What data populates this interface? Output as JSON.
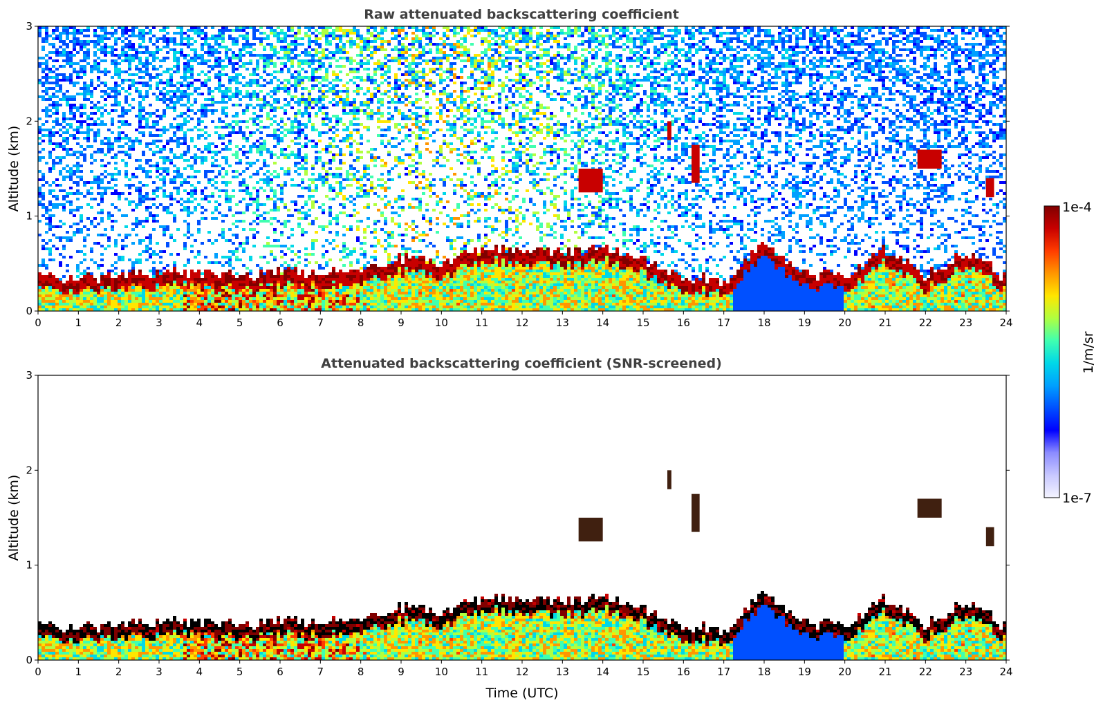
{
  "colors": {
    "colormap": [
      "#f4f4ff",
      "#c8c8ff",
      "#8c8cff",
      "#0000ff",
      "#0050ff",
      "#00a0ff",
      "#00d8e8",
      "#40ffb0",
      "#b0ff40",
      "#ffe600",
      "#ff9600",
      "#ff3c00",
      "#c80000",
      "#800000"
    ],
    "cloud_core": "#000000",
    "axis": "#000000",
    "title": "#404040"
  },
  "colorbar": {
    "label": "1/m/sr",
    "max_label": "1e-4",
    "min_label": "1e-7",
    "scale": "log"
  },
  "chart_data": [
    {
      "type": "heatmap",
      "title": "Raw attenuated backscattering coefficient",
      "xlabel": "",
      "ylabel": "Altitude (km)",
      "xlim": [
        0,
        24
      ],
      "ylim": [
        0,
        3
      ],
      "xticks": [
        "0",
        "1",
        "2",
        "3",
        "4",
        "5",
        "6",
        "7",
        "8",
        "9",
        "10",
        "11",
        "12",
        "13",
        "14",
        "15",
        "16",
        "17",
        "18",
        "19",
        "20",
        "21",
        "22",
        "23",
        "24"
      ],
      "yticks": [
        "0",
        "1",
        "2",
        "3"
      ],
      "screened": false,
      "boundary_layer_top_km": {
        "x": [
          0,
          1,
          2,
          3,
          4,
          5,
          6,
          7,
          8,
          9,
          10,
          11,
          12,
          13,
          14,
          15,
          16,
          17,
          18,
          19,
          20,
          21,
          22,
          23,
          24
        ],
        "y": [
          0.3,
          0.3,
          0.3,
          0.35,
          0.35,
          0.3,
          0.35,
          0.35,
          0.35,
          0.5,
          0.45,
          0.6,
          0.6,
          0.55,
          0.6,
          0.5,
          0.3,
          0.25,
          0.65,
          0.35,
          0.3,
          0.6,
          0.3,
          0.55,
          0.3
        ]
      },
      "elevated_cloud_layers": [
        {
          "x": [
            13.4,
            14.0
          ],
          "y_km": [
            1.25,
            1.5
          ]
        },
        {
          "x": [
            15.6,
            15.7
          ],
          "y_km": [
            1.8,
            2.0
          ]
        },
        {
          "x": [
            16.2,
            16.4
          ],
          "y_km": [
            1.35,
            1.75
          ]
        },
        {
          "x": [
            21.8,
            22.4
          ],
          "y_km": [
            1.5,
            1.7
          ]
        },
        {
          "x": [
            23.5,
            23.7
          ],
          "y_km": [
            1.2,
            1.4
          ]
        }
      ]
    },
    {
      "type": "heatmap",
      "title": "Attenuated backscattering coefficient (SNR-screened)",
      "xlabel": "Time (UTC)",
      "ylabel": "Altitude (km)",
      "xlim": [
        0,
        24
      ],
      "ylim": [
        0,
        3
      ],
      "xticks": [
        "0",
        "1",
        "2",
        "3",
        "4",
        "5",
        "6",
        "7",
        "8",
        "9",
        "10",
        "11",
        "12",
        "13",
        "14",
        "15",
        "16",
        "17",
        "18",
        "19",
        "20",
        "21",
        "22",
        "23",
        "24"
      ],
      "yticks": [
        "0",
        "1",
        "2",
        "3"
      ],
      "screened": true,
      "boundary_layer_top_km": {
        "x": [
          0,
          1,
          2,
          3,
          4,
          5,
          6,
          7,
          8,
          9,
          10,
          11,
          12,
          13,
          14,
          15,
          16,
          17,
          18,
          19,
          20,
          21,
          22,
          23,
          24
        ],
        "y": [
          0.3,
          0.3,
          0.3,
          0.35,
          0.35,
          0.3,
          0.35,
          0.35,
          0.35,
          0.5,
          0.45,
          0.6,
          0.6,
          0.55,
          0.6,
          0.5,
          0.3,
          0.25,
          0.65,
          0.35,
          0.3,
          0.6,
          0.3,
          0.55,
          0.3
        ]
      },
      "elevated_cloud_layers": [
        {
          "x": [
            13.4,
            14.0
          ],
          "y_km": [
            1.25,
            1.5
          ]
        },
        {
          "x": [
            15.6,
            15.7
          ],
          "y_km": [
            1.8,
            2.0
          ]
        },
        {
          "x": [
            16.2,
            16.4
          ],
          "y_km": [
            1.35,
            1.75
          ]
        },
        {
          "x": [
            21.8,
            22.4
          ],
          "y_km": [
            1.5,
            1.7
          ]
        },
        {
          "x": [
            23.5,
            23.7
          ],
          "y_km": [
            1.2,
            1.4
          ]
        }
      ]
    }
  ]
}
